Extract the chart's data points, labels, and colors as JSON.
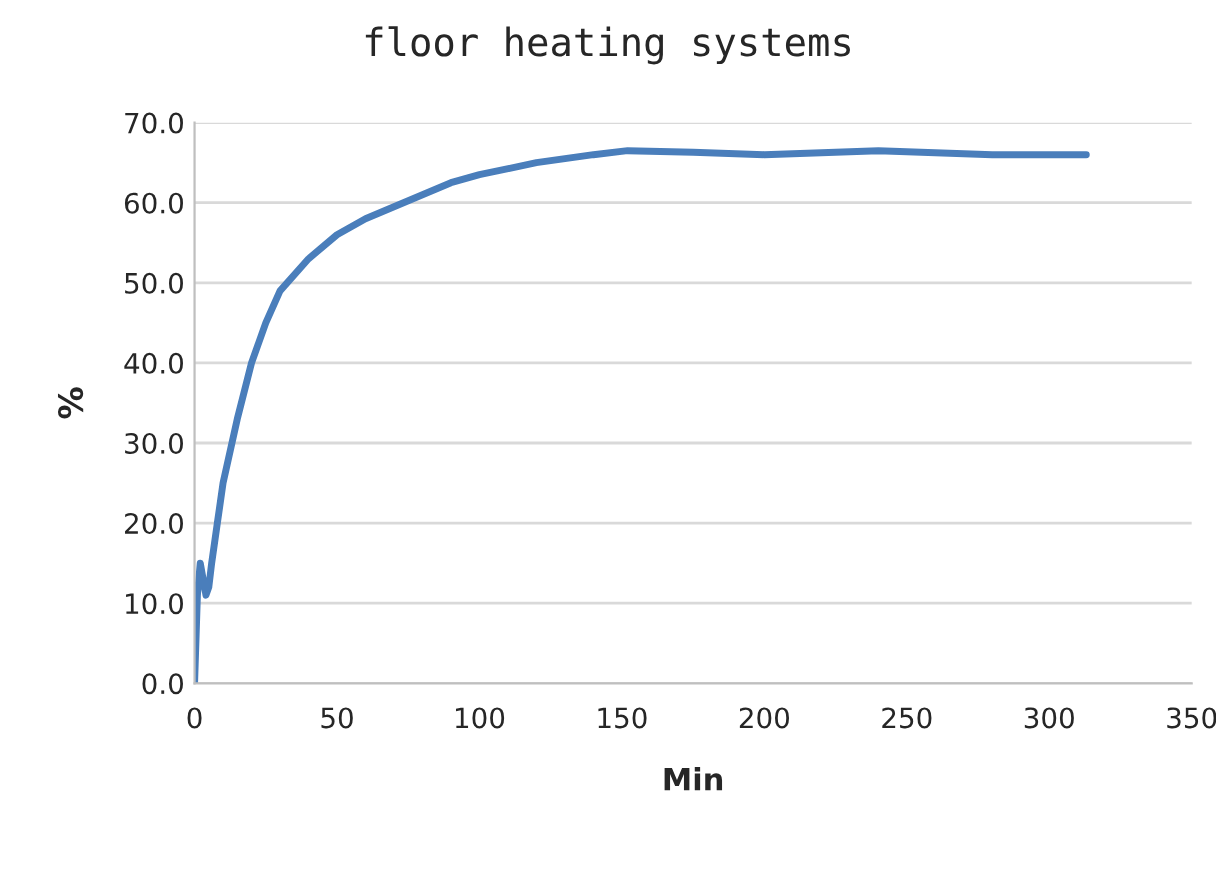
{
  "chart_data": {
    "type": "line",
    "title": "floor heating systems",
    "xlabel": "Min",
    "ylabel": "%",
    "x": [
      0,
      1,
      2,
      3,
      4,
      5,
      6,
      8,
      10,
      15,
      20,
      25,
      30,
      40,
      50,
      60,
      70,
      80,
      90,
      100,
      120,
      140,
      152,
      175,
      200,
      240,
      280,
      313
    ],
    "series": [
      {
        "color": "#4a7ebb",
        "values": [
          0,
          11,
          15,
          13,
          11,
          12,
          15,
          20,
          25,
          33,
          40,
          45,
          49,
          53,
          56,
          58,
          59.5,
          61,
          62.5,
          63.5,
          65,
          66,
          66.5,
          66.3,
          66,
          66.5,
          66,
          66
        ]
      }
    ],
    "xlim": [
      0,
      350
    ],
    "xticks": [
      0,
      50,
      100,
      150,
      200,
      250,
      300,
      350
    ],
    "ylim": [
      0,
      70
    ],
    "yticks": [
      {
        "value": 0,
        "label": "0.0"
      },
      {
        "value": 10,
        "label": "10.0"
      },
      {
        "value": 20,
        "label": "20.0"
      },
      {
        "value": 30,
        "label": "30.0"
      },
      {
        "value": 40,
        "label": "40.0"
      },
      {
        "value": 50,
        "label": "50.0"
      },
      {
        "value": 60,
        "label": "60.0"
      },
      {
        "value": 70,
        "label": "70.0"
      }
    ],
    "grid": "y",
    "marker": "none",
    "line_style": "solid",
    "legend": false
  }
}
